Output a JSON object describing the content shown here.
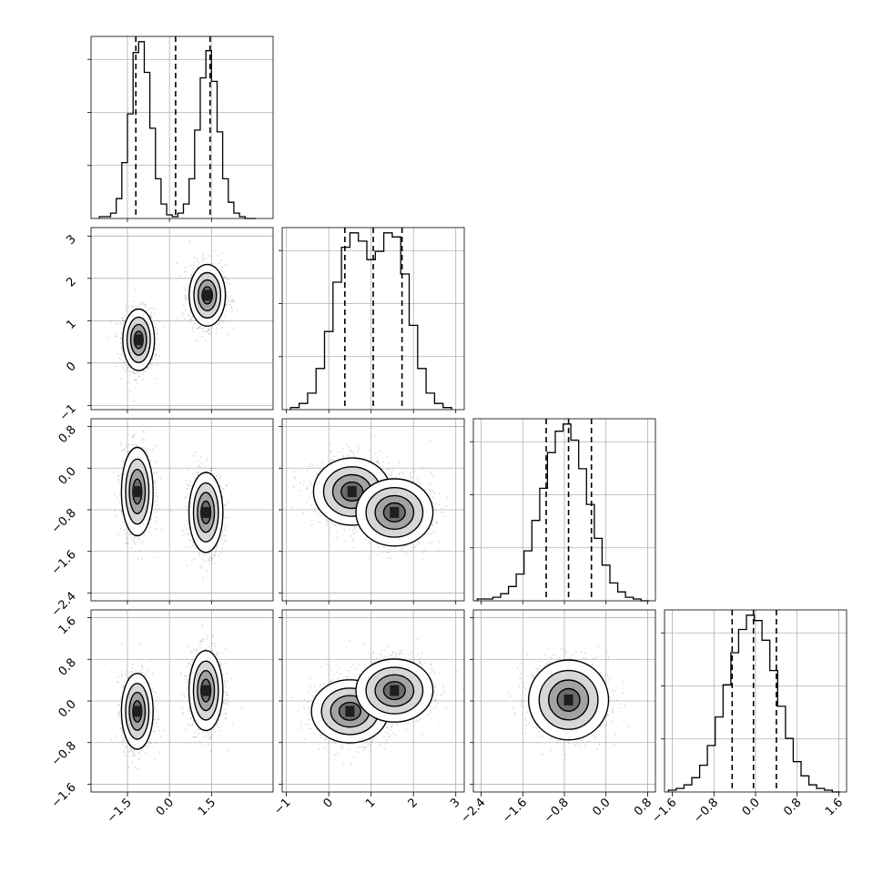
{
  "chart_data": {
    "type": "corner",
    "grid": true,
    "num_parameters": 4,
    "quantile_line_style": "dashed",
    "colors": {
      "line": "#000000",
      "grid": "#b0b0b0",
      "scatter": "#9a9a9a",
      "frame": "#000000"
    },
    "parameters": [
      {
        "range": [
          -2.8,
          3.7
        ],
        "ticks": [
          -1.5,
          0.0,
          1.5
        ],
        "tick_labels": [
          "−1.5",
          "0.0",
          "1.5"
        ],
        "quantiles": [
          -1.2,
          0.22,
          1.45
        ],
        "hist": {
          "x": [
            -2.4,
            -2.2,
            -2.0,
            -1.8,
            -1.6,
            -1.4,
            -1.2,
            -1.0,
            -0.8,
            -0.6,
            -0.4,
            -0.2,
            0.0,
            0.2,
            0.4,
            0.6,
            0.8,
            1.0,
            1.2,
            1.4,
            1.6,
            1.8,
            2.0,
            2.2,
            2.4,
            2.6,
            2.8,
            3.0
          ],
          "counts": [
            0.01,
            0.01,
            0.03,
            0.11,
            0.31,
            0.58,
            0.92,
            0.98,
            0.81,
            0.5,
            0.22,
            0.08,
            0.02,
            0.01,
            0.03,
            0.08,
            0.22,
            0.49,
            0.78,
            0.93,
            0.76,
            0.48,
            0.22,
            0.09,
            0.03,
            0.01,
            0.0,
            0.0
          ]
        }
      },
      {
        "range": [
          -1.1,
          3.2
        ],
        "ticks": [
          -1,
          0,
          1,
          2,
          3
        ],
        "tick_labels": [
          "−1",
          "0",
          "1",
          "2",
          "3"
        ],
        "quantiles": [
          0.38,
          1.05,
          1.73
        ],
        "hist": {
          "x": [
            -0.8,
            -0.6,
            -0.4,
            -0.2,
            0.0,
            0.2,
            0.4,
            0.6,
            0.8,
            1.0,
            1.2,
            1.4,
            1.6,
            1.8,
            2.0,
            2.2,
            2.4,
            2.6,
            2.8
          ],
          "counts": [
            0.01,
            0.03,
            0.08,
            0.2,
            0.38,
            0.62,
            0.79,
            0.86,
            0.82,
            0.73,
            0.77,
            0.86,
            0.84,
            0.66,
            0.41,
            0.2,
            0.08,
            0.03,
            0.01
          ]
        }
      },
      {
        "range": [
          -2.55,
          0.95
        ],
        "ticks": [
          -2.4,
          -1.6,
          -0.8,
          0.0,
          0.8
        ],
        "tick_labels": [
          "−2.4",
          "−1.6",
          "−0.8",
          "0.0",
          "0.8"
        ],
        "quantiles": [
          -1.15,
          -0.72,
          -0.28
        ],
        "hist": {
          "x": [
            -2.4,
            -2.25,
            -2.1,
            -1.95,
            -1.8,
            -1.65,
            -1.5,
            -1.35,
            -1.2,
            -1.05,
            -0.9,
            -0.75,
            -0.6,
            -0.45,
            -0.3,
            -0.15,
            0.0,
            0.15,
            0.3,
            0.45,
            0.6,
            0.75
          ],
          "counts": [
            0.01,
            0.01,
            0.02,
            0.04,
            0.08,
            0.15,
            0.28,
            0.45,
            0.63,
            0.83,
            0.95,
            0.99,
            0.9,
            0.74,
            0.54,
            0.35,
            0.2,
            0.1,
            0.05,
            0.02,
            0.01,
            0.0
          ]
        }
      },
      {
        "range": [
          -1.75,
          1.75
        ],
        "ticks": [
          -1.6,
          -0.8,
          0.0,
          0.8,
          1.6
        ],
        "tick_labels": [
          "−1.6",
          "−0.8",
          "0.0",
          "0.8",
          "1.6"
        ],
        "quantiles": [
          -0.45,
          -0.04,
          0.4
        ],
        "hist": {
          "x": [
            -1.6,
            -1.45,
            -1.3,
            -1.15,
            -1.0,
            -0.85,
            -0.7,
            -0.55,
            -0.4,
            -0.25,
            -0.1,
            0.05,
            0.2,
            0.35,
            0.5,
            0.65,
            0.8,
            0.95,
            1.1,
            1.25,
            1.4,
            1.55
          ],
          "counts": [
            0.01,
            0.02,
            0.04,
            0.08,
            0.15,
            0.26,
            0.42,
            0.6,
            0.78,
            0.91,
            0.99,
            0.96,
            0.85,
            0.68,
            0.48,
            0.3,
            0.17,
            0.09,
            0.04,
            0.02,
            0.01,
            0.0
          ]
        }
      }
    ],
    "panels": [
      {
        "row": 1,
        "col": 0,
        "modes": [
          {
            "mean": [
              -1.1,
              0.55
            ],
            "sd": [
              0.28,
              0.36
            ]
          },
          {
            "mean": [
              1.35,
              1.6
            ],
            "sd": [
              0.32,
              0.36
            ]
          }
        ]
      },
      {
        "row": 2,
        "col": 0,
        "modes": [
          {
            "mean": [
              -1.15,
              -0.45
            ],
            "sd": [
              0.28,
              0.42
            ]
          },
          {
            "mean": [
              1.3,
              -0.85
            ],
            "sd": [
              0.3,
              0.38
            ]
          }
        ]
      },
      {
        "row": 2,
        "col": 1,
        "modes": [
          {
            "mean": [
              0.55,
              -0.45
            ],
            "sd": [
              0.45,
              0.32
            ]
          },
          {
            "mean": [
              1.55,
              -0.85
            ],
            "sd": [
              0.45,
              0.32
            ]
          }
        ]
      },
      {
        "row": 3,
        "col": 0,
        "modes": [
          {
            "mean": [
              -1.15,
              -0.2
            ],
            "sd": [
              0.28,
              0.36
            ]
          },
          {
            "mean": [
              1.3,
              0.2
            ],
            "sd": [
              0.3,
              0.38
            ]
          }
        ]
      },
      {
        "row": 3,
        "col": 1,
        "modes": [
          {
            "mean": [
              0.5,
              -0.2
            ],
            "sd": [
              0.45,
              0.3
            ]
          },
          {
            "mean": [
              1.55,
              0.2
            ],
            "sd": [
              0.45,
              0.3
            ]
          }
        ]
      },
      {
        "row": 3,
        "col": 2,
        "modes": [
          {
            "mean": [
              -0.72,
              0.02
            ],
            "sd": [
              0.38,
              0.38
            ]
          }
        ]
      }
    ]
  }
}
